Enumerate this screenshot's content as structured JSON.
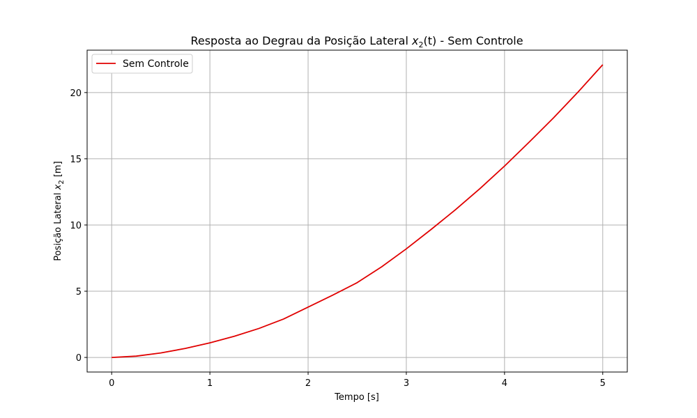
{
  "chart_data": {
    "type": "line",
    "title_main": "Resposta ao Degrau da Posição Lateral ",
    "title_var": "x",
    "title_sub": "2",
    "title_arg": "(t)",
    "title_end": " - Sem Controle",
    "xlabel": "Tempo [s]",
    "ylabel_main": "Posição Lateral ",
    "ylabel_var": "x",
    "ylabel_sub": "2",
    "ylabel_unit": " [m]",
    "xlim": [
      -0.25,
      5.25
    ],
    "ylim": [
      -1.1,
      23.2
    ],
    "xticks": [
      0,
      1,
      2,
      3,
      4,
      5
    ],
    "yticks": [
      0,
      5,
      10,
      15,
      20
    ],
    "grid": true,
    "legend_position": "upper-left",
    "series": [
      {
        "name": "Sem Controle",
        "color": "#e00000",
        "x": [
          0,
          0.25,
          0.5,
          0.75,
          1.0,
          1.25,
          1.5,
          1.75,
          2.0,
          2.25,
          2.5,
          2.75,
          3.0,
          3.25,
          3.5,
          3.75,
          4.0,
          4.25,
          4.5,
          4.75,
          5.0
        ],
        "y": [
          0,
          0.1,
          0.34,
          0.68,
          1.1,
          1.6,
          2.19,
          2.9,
          3.8,
          4.7,
          5.65,
          6.85,
          8.2,
          9.65,
          11.15,
          12.75,
          14.45,
          16.25,
          18.1,
          20.05,
          22.1
        ]
      }
    ]
  }
}
